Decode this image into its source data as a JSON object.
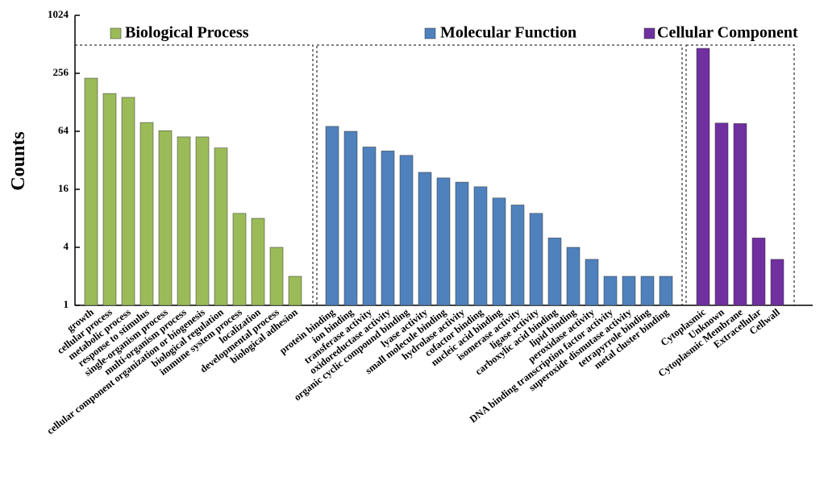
{
  "chart_data": {
    "type": "bar",
    "y_label": "Counts",
    "log_scale": true,
    "log_base": 2,
    "ylim": [
      1,
      1024
    ],
    "yticks": [
      1,
      4,
      16,
      64,
      256,
      1024
    ],
    "series": [
      {
        "name": "Biological Process",
        "color": "#9bbb59",
        "categories": [
          "growth",
          "cellular process",
          "metabolic process",
          "response to stimulus",
          "single-organism process",
          "multi-organism process",
          "cellular component organization or biogenesis",
          "biological regulation",
          "immune system process",
          "localization",
          "developmental process",
          "biological adhesion"
        ],
        "values": [
          228,
          158,
          144,
          79,
          65,
          56,
          56,
          43,
          9,
          8,
          4,
          2
        ]
      },
      {
        "name": "Molecular Function",
        "color": "#4f81bd",
        "categories": [
          "protein binding",
          "ion binding",
          "transferase activity",
          "oxidoreductase activity",
          "organic cyclic compound binding",
          "lyase activity",
          "small molecule binding",
          "hydrolase activity",
          "cofactor binding",
          "nucleic acid binding",
          "isomerase activity",
          "ligase activity",
          "carboxylic acid binding",
          "lipid binding",
          "peroxidase activity",
          "DNA binding transcription factor activity",
          "superoxide dismutase activity",
          "tetrapyrrole binding",
          "metal cluster binding"
        ],
        "values": [
          72,
          64,
          44,
          40,
          36,
          24,
          21,
          19,
          17,
          13,
          11,
          9,
          5,
          4,
          3,
          2,
          2,
          2,
          2
        ]
      },
      {
        "name": "Cellular Component",
        "color": "#7030a0",
        "categories": [
          "Cytoplasmic",
          "Unknown",
          "Cytoplasmic Membrane",
          "Extracellular",
          "Cellwall"
        ],
        "values": [
          465,
          78,
          77,
          5,
          3
        ]
      }
    ]
  }
}
